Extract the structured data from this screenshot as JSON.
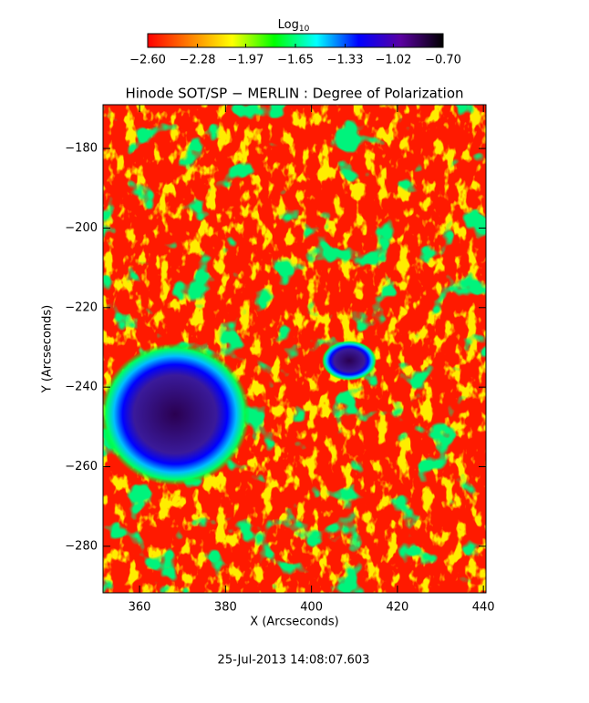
{
  "chart_data": {
    "type": "heatmap",
    "title": "Hinode SOT/SP − MERLIN : Degree of Polarization",
    "x_label": "X (Arcseconds)",
    "y_label": "Y (Arcseconds)",
    "xlim": [
      351.5,
      440.6
    ],
    "xticks": [
      360,
      380,
      400,
      420,
      440
    ],
    "ylim": [
      -291.7,
      -169.0
    ],
    "yticks": [
      -180,
      -200,
      -220,
      -240,
      -260,
      -280
    ],
    "colorbar": {
      "label": "Log",
      "label_sub": "10",
      "clim": [
        -2.6,
        -0.7
      ],
      "colors": [
        "#ff0000",
        "#ff8000",
        "#ffff00",
        "#00ff00",
        "#00ffff",
        "#0000ff",
        "#5a00a0",
        "#000000"
      ],
      "ticks": [
        {
          "value": -2.6,
          "label": "−2.60"
        },
        {
          "value": -2.28,
          "label": "−2.28"
        },
        {
          "value": -1.97,
          "label": "−1.97"
        },
        {
          "value": -1.65,
          "label": "−1.65"
        },
        {
          "value": -1.33,
          "label": "−1.33"
        },
        {
          "value": -1.02,
          "label": "−1.02"
        },
        {
          "value": -0.7,
          "label": "−0.70"
        }
      ]
    },
    "footer": "25-Jul-2013 14:08:07.603"
  }
}
